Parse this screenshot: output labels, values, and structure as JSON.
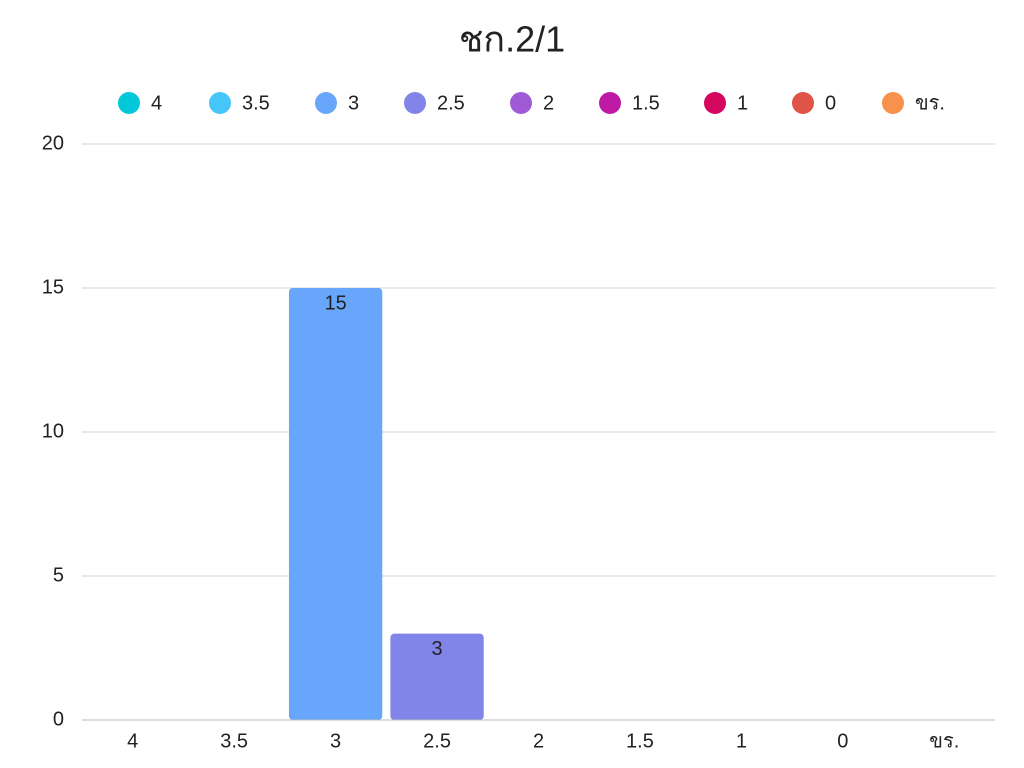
{
  "chart_data": {
    "type": "bar",
    "title": "ชก.2/1",
    "categories": [
      "4",
      "3.5",
      "3",
      "2.5",
      "2",
      "1.5",
      "1",
      "0",
      "ขร."
    ],
    "values": [
      0,
      0,
      15,
      3,
      0,
      0,
      0,
      0,
      0
    ],
    "colors": [
      "#00c8d8",
      "#46c6f8",
      "#67a6fa",
      "#8184e8",
      "#a05ad6",
      "#be1aa6",
      "#d4065e",
      "#e05347",
      "#f7914c"
    ],
    "ylim": [
      0,
      20
    ],
    "yticks": [
      0,
      5,
      10,
      15,
      20
    ],
    "grid": true,
    "legend": "top"
  }
}
